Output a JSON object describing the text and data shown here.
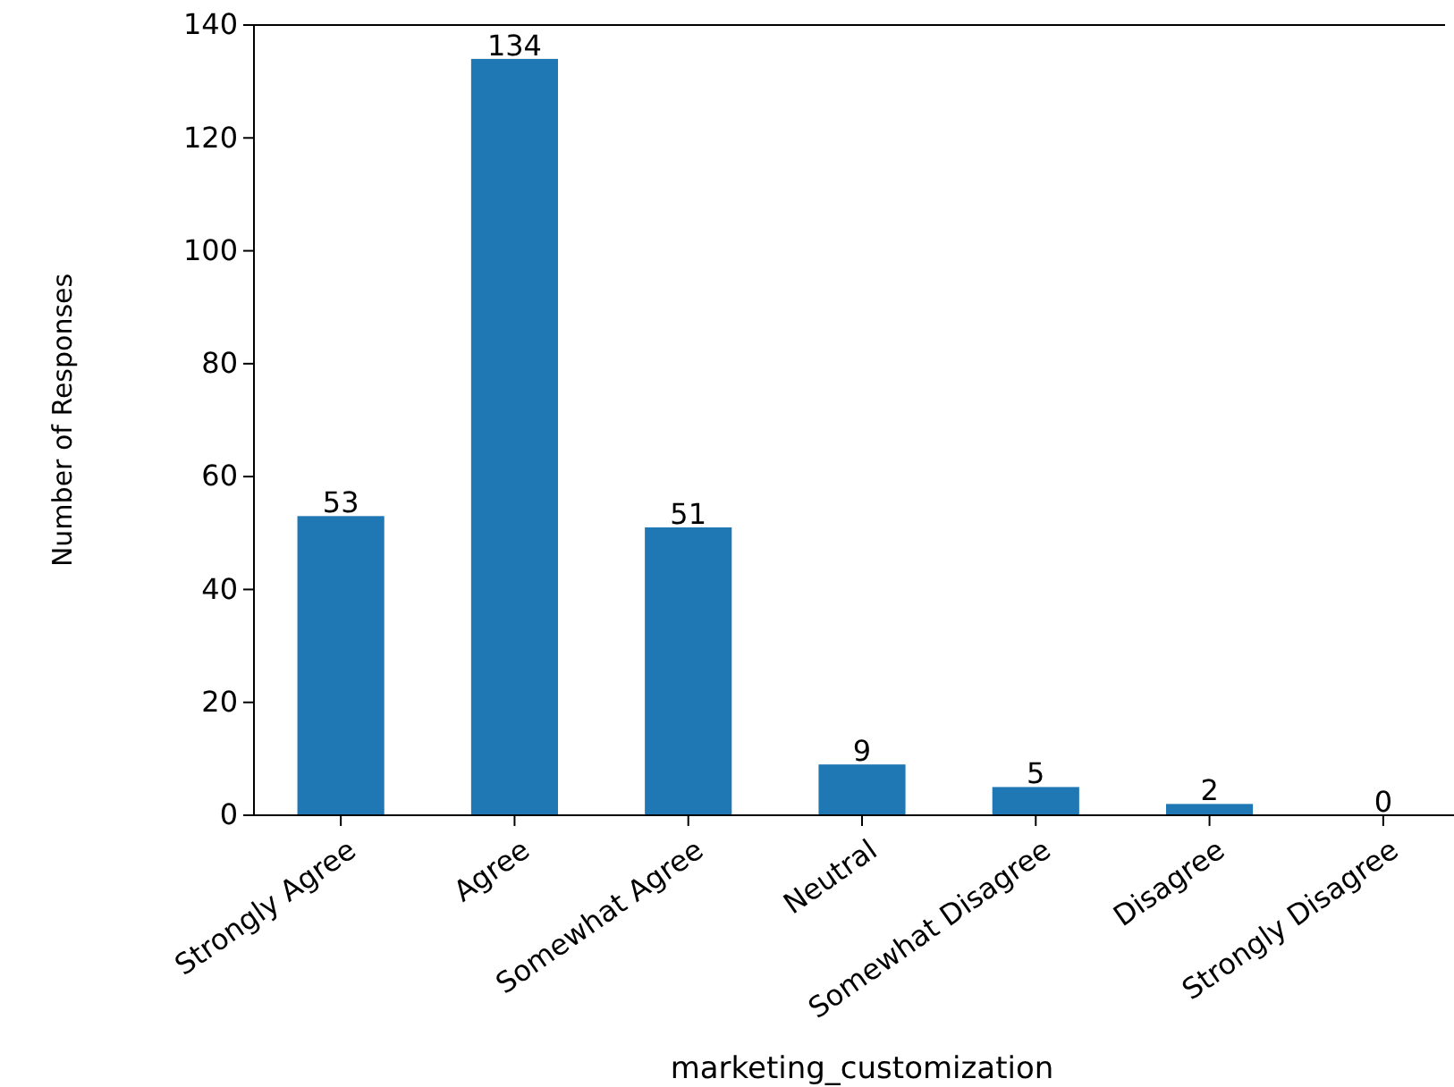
{
  "chart_data": {
    "type": "bar",
    "xlabel": "marketing_customization",
    "ylabel": "Number of Responses",
    "categories": [
      "Strongly Agree",
      "Agree",
      "Somewhat Agree",
      "Neutral",
      "Somewhat Disagree",
      "Disagree",
      "Strongly Disagree"
    ],
    "values": [
      53,
      134,
      51,
      9,
      5,
      2,
      0
    ],
    "color": "#1f77b4",
    "data_labels": true,
    "ylim": [
      0,
      140
    ],
    "yticks": [
      0,
      20,
      40,
      60,
      80,
      100,
      120,
      140
    ]
  }
}
